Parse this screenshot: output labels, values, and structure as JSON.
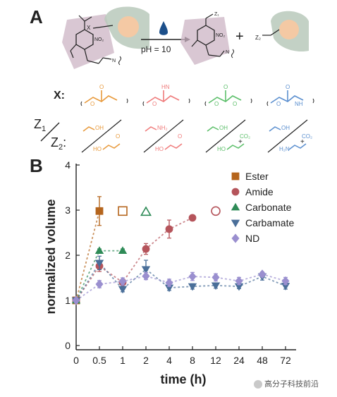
{
  "panels": {
    "a": "A",
    "b": "B"
  },
  "scheme": {
    "reagent_label": "pH = 10",
    "plus": "+",
    "substituents": {
      "x": "X",
      "z1_top": "Z₁",
      "z2_product": "Z₂",
      "no2": "NO₂",
      "nh": "N",
      "h": "H"
    },
    "x_row_label": "X:",
    "z_row_label_1": "Z",
    "z_row_label_1_sub": "1",
    "z_row_label_2": "Z",
    "z_row_label_2_sub": "2",
    "z_row_label_colon": ":",
    "x_fragments": [
      {
        "name": "ester",
        "color": "#e89a3c",
        "atoms": [
          "O",
          "O"
        ]
      },
      {
        "name": "amide",
        "color": "#ef7b7b",
        "atoms": [
          "O",
          "HN"
        ]
      },
      {
        "name": "carbonate",
        "color": "#5cbf6a",
        "atoms": [
          "O",
          "O",
          "O"
        ]
      },
      {
        "name": "carbamate",
        "color": "#5b8fcf",
        "atoms": [
          "O",
          "O",
          "NH"
        ]
      }
    ],
    "z_fragments": [
      {
        "name": "ester",
        "color": "#e89a3c",
        "z1": "OH",
        "z2": "HO",
        "z2b": "O"
      },
      {
        "name": "amide",
        "color": "#ef7b7b",
        "z1": "NH₂",
        "z2": "HO",
        "z2b": "O"
      },
      {
        "name": "carbonate",
        "color": "#5cbf6a",
        "z1": "OH",
        "z2": "HO",
        "z2b": "CO₂"
      },
      {
        "name": "carbamate",
        "color": "#5b8fcf",
        "z1": "OH",
        "z2": "H₂N",
        "z2b": "CO₂"
      }
    ]
  },
  "chart_data": {
    "type": "scatter",
    "xlabel": "time (h)",
    "ylabel": "normalized volume",
    "categories": [
      "0",
      "0.5",
      "1",
      "2",
      "4",
      "8",
      "12",
      "24",
      "48",
      "72"
    ],
    "ylim": [
      0,
      4
    ],
    "yticks": [
      "0",
      "1",
      "2",
      "3",
      "4"
    ],
    "legend_position": "top-right",
    "series": [
      {
        "name": "Ester",
        "color": "#b5651d",
        "marker": "square",
        "points": [
          {
            "x": "0",
            "y": 1.0,
            "err": 0.05
          },
          {
            "x": "0.5",
            "y": 2.98,
            "err": 0.32
          }
        ],
        "hollow": [
          {
            "x": "1",
            "y": 2.98
          }
        ]
      },
      {
        "name": "Amide",
        "color": "#b5545b",
        "marker": "circle",
        "points": [
          {
            "x": "0",
            "y": 1.0,
            "err": 0.05
          },
          {
            "x": "0.5",
            "y": 1.76,
            "err": 0.12
          },
          {
            "x": "1",
            "y": 1.4,
            "err": 0.06
          },
          {
            "x": "2",
            "y": 2.14,
            "err": 0.12
          },
          {
            "x": "4",
            "y": 2.58,
            "err": 0.2
          },
          {
            "x": "8",
            "y": 2.83,
            "err": 0.03
          }
        ],
        "hollow": [
          {
            "x": "12",
            "y": 2.98
          }
        ]
      },
      {
        "name": "Carbonate",
        "color": "#2e8b57",
        "marker": "triangle-up",
        "points": [
          {
            "x": "0",
            "y": 1.0,
            "err": 0.05
          },
          {
            "x": "0.5",
            "y": 2.1,
            "err": 0.04
          },
          {
            "x": "1",
            "y": 2.1,
            "err": 0.04
          }
        ],
        "hollow": [
          {
            "x": "2",
            "y": 2.96
          }
        ]
      },
      {
        "name": "Carbamate",
        "color": "#4a6f99",
        "marker": "triangle-down",
        "points": [
          {
            "x": "0",
            "y": 1.0,
            "err": 0.05
          },
          {
            "x": "0.5",
            "y": 1.83,
            "err": 0.15
          },
          {
            "x": "1",
            "y": 1.25,
            "err": 0.06
          },
          {
            "x": "2",
            "y": 1.69,
            "err": 0.2
          },
          {
            "x": "4",
            "y": 1.28,
            "err": 0.06
          },
          {
            "x": "8",
            "y": 1.31,
            "err": 0.06
          },
          {
            "x": "12",
            "y": 1.33,
            "err": 0.06
          },
          {
            "x": "24",
            "y": 1.31,
            "err": 0.05
          },
          {
            "x": "48",
            "y": 1.53,
            "err": 0.08
          },
          {
            "x": "72",
            "y": 1.32,
            "err": 0.07
          }
        ]
      },
      {
        "name": "ND",
        "color": "#9a8fcf",
        "marker": "diamond",
        "points": [
          {
            "x": "0",
            "y": 1.0,
            "err": 0.05
          },
          {
            "x": "0.5",
            "y": 1.36,
            "err": 0.08
          },
          {
            "x": "1",
            "y": 1.42,
            "err": 0.08
          },
          {
            "x": "2",
            "y": 1.54,
            "err": 0.08
          },
          {
            "x": "4",
            "y": 1.39,
            "err": 0.08
          },
          {
            "x": "8",
            "y": 1.53,
            "err": 0.09
          },
          {
            "x": "12",
            "y": 1.51,
            "err": 0.08
          },
          {
            "x": "24",
            "y": 1.43,
            "err": 0.08
          },
          {
            "x": "48",
            "y": 1.58,
            "err": 0.05
          },
          {
            "x": "72",
            "y": 1.43,
            "err": 0.08
          }
        ]
      }
    ]
  },
  "watermark": "高分子科技前沿"
}
